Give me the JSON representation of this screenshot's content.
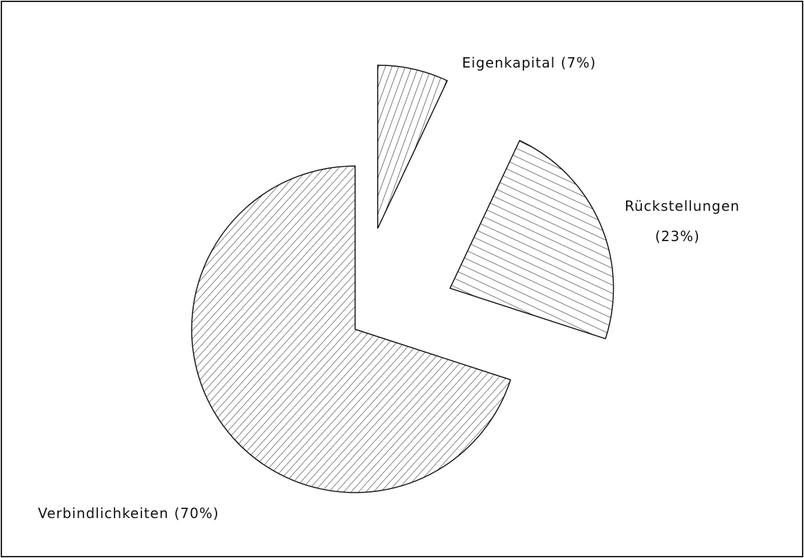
{
  "chart_data": {
    "type": "pie",
    "categories": [
      "Eigenkapital",
      "Rückstellungen",
      "Verbindlichkeiten"
    ],
    "values": [
      7,
      23,
      70
    ],
    "value_labels": [
      "(7%)",
      "(23%)",
      "(70%)"
    ]
  }
}
